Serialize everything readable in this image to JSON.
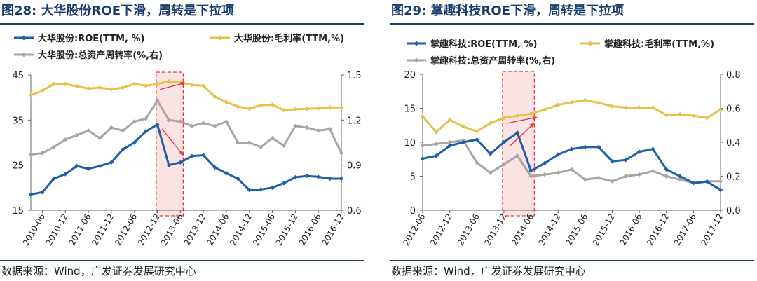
{
  "charts": [
    {
      "figure_label": "图28:",
      "title": "大华股份ROE下滑，周转是下拉项",
      "source": "数据来源：Wind，广发证券发展研究中心"
    },
    {
      "figure_label": "图29:",
      "title": "掌趣科技ROE下滑，周转是下拉项",
      "source": "数据来源：Wind，广发证券发展研究中心"
    }
  ],
  "chart_data": [
    {
      "type": "line",
      "title": "大华股份ROE下滑，周转是下拉项",
      "x": [
        "2010-03",
        "2010-06",
        "2010-09",
        "2010-12",
        "2011-03",
        "2011-06",
        "2011-09",
        "2011-12",
        "2012-03",
        "2012-06",
        "2012-09",
        "2012-12",
        "2013-03",
        "2013-06",
        "2013-09",
        "2013-12",
        "2014-03",
        "2014-06",
        "2014-09",
        "2014-12",
        "2015-03",
        "2015-06",
        "2015-09",
        "2015-12",
        "2016-03",
        "2016-06",
        "2016-09",
        "2016-12"
      ],
      "x_tick_labels": [
        "2010-06",
        "2010-12",
        "2011-06",
        "2011-12",
        "2012-06",
        "2012-12",
        "2013-06",
        "2013-12",
        "2014-06",
        "2014-12",
        "2015-06",
        "2015-12",
        "2016-06",
        "2016-12"
      ],
      "y_left": {
        "range": [
          15,
          45
        ],
        "ticks": [
          "15",
          "25",
          "35",
          "45"
        ]
      },
      "y_right": {
        "range": [
          0.6,
          1.5
        ],
        "ticks": [
          "0.6",
          "0.9",
          "1.2",
          "1.5"
        ]
      },
      "legend_placement": "top",
      "grid": false,
      "highlight": {
        "from": "2012-12",
        "to": "2013-06"
      },
      "series": [
        {
          "name": "大华股份:ROE(TTM, %)",
          "axis": "left",
          "color": "#1f5fa8",
          "values": [
            18.5,
            19.0,
            22.0,
            23.0,
            24.8,
            24.2,
            24.8,
            25.6,
            28.5,
            30.0,
            32.5,
            34.0,
            25.0,
            25.6,
            27.0,
            27.2,
            24.5,
            23.2,
            22.0,
            19.5,
            19.6,
            20.0,
            21.0,
            22.3,
            22.6,
            22.4,
            22.0,
            22.0
          ]
        },
        {
          "name": "大华股份:毛利率(TTM,%)",
          "axis": "left",
          "color": "#e6c14b",
          "values": [
            40.5,
            41.5,
            43.0,
            43.0,
            42.5,
            42.0,
            42.2,
            41.8,
            42.2,
            43.0,
            42.6,
            43.0,
            43.6,
            43.3,
            42.8,
            42.6,
            40.2,
            39.0,
            38.0,
            37.5,
            38.3,
            38.4,
            37.2,
            37.4,
            37.5,
            37.6,
            37.8,
            37.8
          ]
        },
        {
          "name": "大华股份:总资产周转率(%,右)",
          "axis": "right",
          "color": "#a6a6a6",
          "values": [
            0.97,
            0.98,
            1.02,
            1.07,
            1.1,
            1.13,
            1.08,
            1.15,
            1.13,
            1.19,
            1.21,
            1.33,
            1.2,
            1.19,
            1.16,
            1.18,
            1.16,
            1.19,
            1.05,
            1.05,
            1.02,
            1.08,
            1.03,
            1.16,
            1.15,
            1.13,
            1.14,
            0.98
          ]
        }
      ]
    },
    {
      "type": "line",
      "title": "掌趣科技ROE下滑，周转是下拉项",
      "x": [
        "2012-06",
        "2012-09",
        "2012-12",
        "2013-03",
        "2013-06",
        "2013-09",
        "2013-12",
        "2014-03",
        "2014-06",
        "2014-09",
        "2014-12",
        "2015-03",
        "2015-06",
        "2015-09",
        "2015-12",
        "2016-03",
        "2016-06",
        "2016-09",
        "2016-12",
        "2017-03",
        "2017-06",
        "2017-09",
        "2017-12"
      ],
      "x_tick_labels": [
        "2012-06",
        "2012-12",
        "2013-06",
        "2013-12",
        "2014-06",
        "2014-12",
        "2015-06",
        "2015-12",
        "2016-06",
        "2016-12",
        "2017-06",
        "2017-12"
      ],
      "y_left": {
        "range": [
          0,
          20
        ],
        "ticks": [
          "0",
          "5",
          "10",
          "15",
          "20"
        ]
      },
      "y_right": {
        "range": [
          0,
          0.8
        ],
        "ticks": [
          "0.0",
          "0.2",
          "0.4",
          "0.6",
          "0.8"
        ]
      },
      "legend_placement": "top",
      "grid": false,
      "highlight": {
        "from": "2013-12",
        "to": "2014-06"
      },
      "series": [
        {
          "name": "掌趣科技:ROE(TTM, %)",
          "axis": "left",
          "color": "#1f5fa8",
          "values": [
            7.6,
            8.0,
            9.5,
            10.0,
            10.4,
            8.3,
            10.0,
            11.4,
            5.8,
            6.9,
            8.2,
            9.0,
            9.3,
            9.3,
            7.2,
            7.4,
            8.6,
            9.0,
            6.0,
            5.0,
            4.0,
            4.2,
            3.0
          ]
        },
        {
          "name": "掌趣科技:毛利率(TTM,%)",
          "axis": "left",
          "color": "#e6c14b",
          "values": [
            13.8,
            11.5,
            13.3,
            12.3,
            11.6,
            12.8,
            13.6,
            13.9,
            14.2,
            14.8,
            15.5,
            15.9,
            16.2,
            15.8,
            15.3,
            15.1,
            15.1,
            15.1,
            14.0,
            14.1,
            13.9,
            13.6,
            14.8
          ]
        },
        {
          "name": "掌趣科技:总资产周转率(%,右)",
          "axis": "right",
          "color": "#a6a6a6",
          "values": [
            0.38,
            0.39,
            0.4,
            0.41,
            0.28,
            0.22,
            0.27,
            0.32,
            0.2,
            0.21,
            0.22,
            0.24,
            0.18,
            0.19,
            0.17,
            0.2,
            0.21,
            0.23,
            0.2,
            0.18,
            0.16,
            0.17,
            0.17
          ]
        }
      ]
    }
  ]
}
